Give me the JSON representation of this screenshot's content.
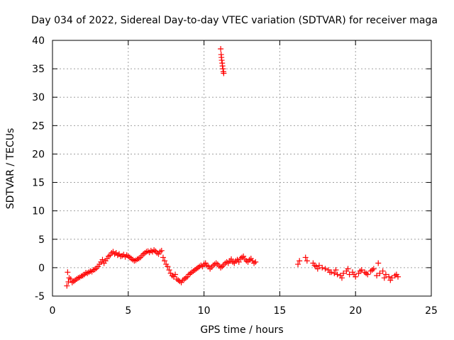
{
  "chart_data": {
    "type": "scatter",
    "title": "Day 034 of 2022, Sidereal Day-to-day VTEC variation (SDTVAR) for receiver maga",
    "xlabel": "GPS time / hours",
    "ylabel": "SDTVAR / TECUs",
    "xlim": [
      0,
      25
    ],
    "ylim": [
      -5,
      40
    ],
    "xticks": [
      0,
      5,
      10,
      15,
      20,
      25
    ],
    "yticks": [
      -5,
      0,
      5,
      10,
      15,
      20,
      25,
      30,
      35,
      40
    ],
    "grid": true,
    "marker": "+",
    "colors": {
      "points": "#ff0000",
      "grid": "#a0a0a0",
      "axes": "#000000"
    },
    "series": [
      {
        "name": "SDTVAR",
        "x": [
          0.95,
          1.0,
          1.05,
          1.1,
          1.2,
          1.3,
          1.4,
          1.5,
          1.6,
          1.7,
          1.8,
          1.9,
          2.0,
          2.1,
          2.2,
          2.3,
          2.4,
          2.5,
          2.6,
          2.7,
          2.8,
          2.9,
          3.0,
          3.1,
          3.2,
          3.3,
          3.4,
          3.5,
          3.6,
          3.7,
          3.8,
          3.9,
          4.0,
          4.1,
          4.2,
          4.3,
          4.4,
          4.5,
          4.6,
          4.7,
          4.8,
          4.9,
          5.0,
          5.1,
          5.2,
          5.3,
          5.4,
          5.5,
          5.6,
          5.7,
          5.8,
          5.9,
          6.0,
          6.1,
          6.2,
          6.3,
          6.4,
          6.5,
          6.6,
          6.7,
          6.8,
          6.9,
          7.0,
          7.1,
          7.2,
          7.3,
          7.4,
          7.5,
          7.6,
          7.7,
          7.8,
          7.9,
          8.0,
          8.1,
          8.2,
          8.3,
          8.4,
          8.5,
          8.6,
          8.7,
          8.8,
          8.9,
          9.0,
          9.1,
          9.2,
          9.3,
          9.4,
          9.5,
          9.6,
          9.7,
          9.8,
          9.9,
          10.0,
          10.1,
          10.2,
          10.3,
          10.4,
          10.5,
          10.6,
          10.7,
          10.8,
          10.9,
          11.0,
          11.1,
          11.2,
          11.3,
          11.4,
          11.5,
          11.6,
          11.7,
          11.8,
          11.9,
          12.0,
          12.1,
          12.2,
          12.3,
          12.4,
          12.5,
          12.6,
          12.7,
          12.8,
          12.9,
          13.0,
          13.1,
          13.2,
          13.3,
          13.4,
          11.1,
          11.13,
          11.15,
          11.17,
          11.2,
          11.22,
          11.25,
          11.28,
          11.3,
          16.2,
          16.3,
          16.7,
          16.8,
          17.2,
          17.3,
          17.4,
          17.5,
          17.6,
          17.8,
          18.0,
          18.2,
          18.4,
          18.6,
          18.8,
          19.0,
          19.2,
          19.4,
          19.6,
          19.8,
          20.0,
          20.2,
          20.4,
          20.6,
          20.8,
          21.0,
          21.2,
          21.4,
          21.6,
          21.8,
          22.0,
          22.2,
          22.4,
          22.6,
          22.8,
          18.3,
          18.7,
          19.1,
          19.5,
          19.9,
          20.3,
          20.7,
          21.1,
          21.5,
          21.9,
          22.3,
          22.7
        ],
        "y": [
          -3.2,
          -0.8,
          -2.5,
          -1.8,
          -2.0,
          -2.6,
          -2.4,
          -2.2,
          -2.0,
          -1.8,
          -1.7,
          -1.5,
          -1.4,
          -1.2,
          -0.9,
          -1.0,
          -0.8,
          -0.6,
          -0.7,
          -0.4,
          -0.3,
          -0.1,
          0.2,
          0.6,
          1.0,
          1.4,
          0.8,
          1.2,
          1.6,
          2.0,
          2.2,
          2.6,
          2.8,
          2.4,
          2.6,
          2.2,
          2.4,
          2.0,
          2.1,
          2.3,
          1.9,
          2.2,
          2.0,
          1.8,
          1.6,
          1.4,
          1.2,
          1.3,
          1.5,
          1.6,
          1.8,
          2.1,
          2.4,
          2.6,
          2.8,
          2.9,
          2.7,
          3.0,
          2.8,
          3.1,
          2.9,
          2.6,
          2.4,
          2.8,
          3.0,
          1.8,
          1.2,
          0.6,
          0.2,
          -0.4,
          -1.0,
          -1.4,
          -1.6,
          -1.2,
          -2.0,
          -2.2,
          -2.4,
          -2.6,
          -2.2,
          -2.0,
          -1.8,
          -1.6,
          -1.2,
          -1.0,
          -0.8,
          -0.6,
          -0.4,
          -0.2,
          0.0,
          0.2,
          0.4,
          0.2,
          0.6,
          0.8,
          0.4,
          0.2,
          -0.2,
          0.1,
          0.4,
          0.6,
          0.8,
          0.6,
          0.3,
          0.0,
          0.2,
          0.5,
          0.8,
          1.0,
          0.8,
          1.2,
          1.5,
          1.0,
          0.8,
          1.2,
          1.4,
          1.0,
          1.6,
          1.8,
          2.0,
          1.5,
          1.2,
          1.0,
          1.4,
          1.6,
          1.2,
          0.8,
          1.0,
          38.5,
          37.5,
          37.0,
          36.5,
          36.0,
          35.5,
          35.0,
          34.5,
          34.2,
          0.6,
          1.2,
          1.8,
          1.2,
          0.8,
          0.4,
          0.2,
          -0.2,
          0.4,
          0.0,
          -0.2,
          -0.4,
          -0.8,
          -1.0,
          -1.2,
          -1.4,
          -1.0,
          -0.6,
          -1.2,
          -0.8,
          -1.6,
          -1.0,
          -0.4,
          -0.8,
          -1.2,
          -0.6,
          -0.2,
          -1.4,
          -1.0,
          -0.6,
          -1.2,
          -1.6,
          -1.8,
          -1.4,
          -1.6,
          -0.8,
          -0.4,
          -1.8,
          -0.2,
          -1.2,
          -0.6,
          -1.0,
          -0.4,
          0.8,
          -1.8,
          -2.2,
          -1.2
        ]
      }
    ]
  }
}
